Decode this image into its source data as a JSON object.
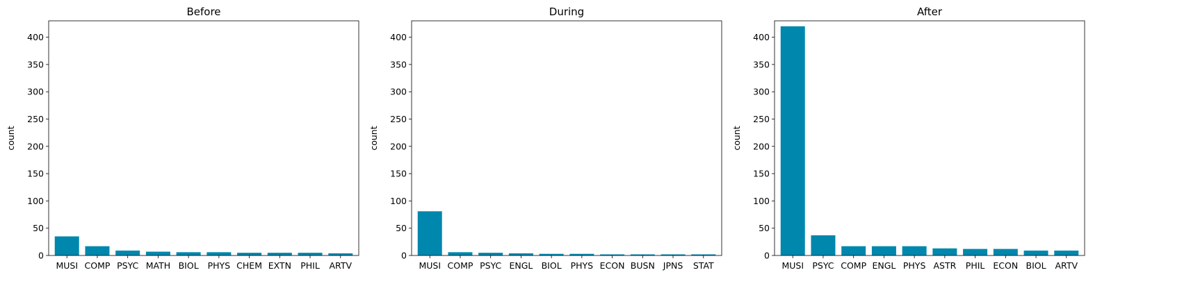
{
  "chart_data": [
    {
      "type": "bar",
      "title": "Before",
      "xlabel": "",
      "ylabel": "count",
      "ylim": [
        0,
        430
      ],
      "yticks": [
        0,
        50,
        100,
        150,
        200,
        250,
        300,
        350,
        400
      ],
      "categories": [
        "MUSI",
        "COMP",
        "PSYC",
        "MATH",
        "BIOL",
        "PHYS",
        "CHEM",
        "EXTN",
        "PHIL",
        "ARTV"
      ],
      "values": [
        35,
        17,
        9,
        7,
        6,
        6,
        5,
        5,
        5,
        4
      ],
      "color": "#0087ad",
      "grid": false
    },
    {
      "type": "bar",
      "title": "During",
      "xlabel": "",
      "ylabel": "count",
      "ylim": [
        0,
        430
      ],
      "yticks": [
        0,
        50,
        100,
        150,
        200,
        250,
        300,
        350,
        400
      ],
      "categories": [
        "MUSI",
        "COMP",
        "PSYC",
        "ENGL",
        "BIOL",
        "PHYS",
        "ECON",
        "BUSN",
        "JPNS",
        "STAT"
      ],
      "values": [
        81,
        6,
        5,
        4,
        3,
        3,
        2,
        2,
        2,
        2
      ],
      "color": "#0087ad",
      "grid": false
    },
    {
      "type": "bar",
      "title": "After",
      "xlabel": "",
      "ylabel": "count",
      "ylim": [
        0,
        430
      ],
      "yticks": [
        0,
        50,
        100,
        150,
        200,
        250,
        300,
        350,
        400
      ],
      "categories": [
        "MUSI",
        "PSYC",
        "COMP",
        "ENGL",
        "PHYS",
        "ASTR",
        "PHIL",
        "ECON",
        "BIOL",
        "ARTV"
      ],
      "values": [
        420,
        37,
        17,
        17,
        17,
        13,
        12,
        12,
        9,
        9
      ],
      "color": "#0087ad",
      "grid": false
    }
  ]
}
